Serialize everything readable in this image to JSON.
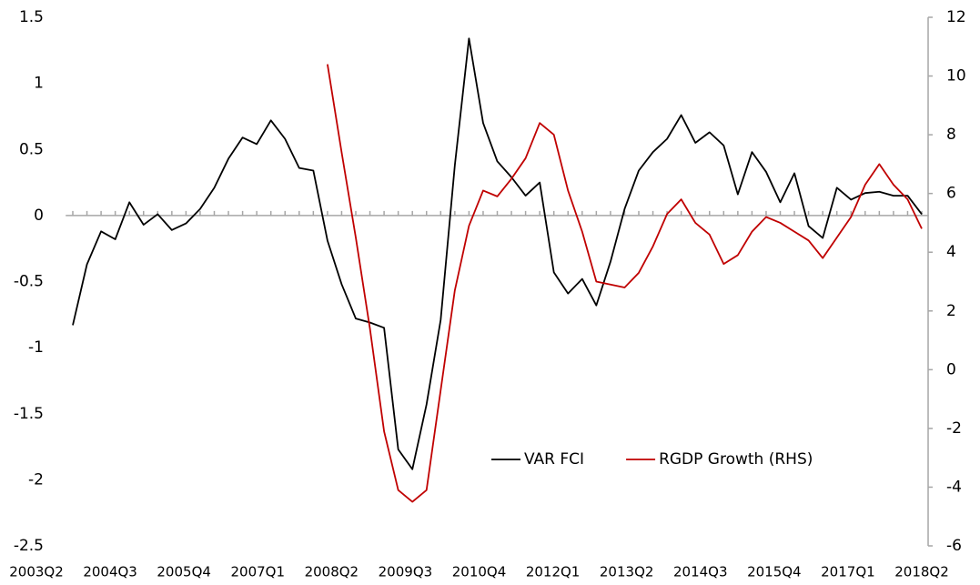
{
  "chart_data": {
    "type": "line",
    "categories": [
      "2003Q2",
      null,
      null,
      null,
      null,
      "2004Q3",
      null,
      null,
      null,
      null,
      "2005Q4",
      null,
      null,
      null,
      null,
      "2007Q1",
      null,
      null,
      null,
      null,
      "2008Q2",
      null,
      null,
      null,
      null,
      "2009Q3",
      null,
      null,
      null,
      null,
      "2010Q4",
      null,
      null,
      null,
      null,
      "2012Q1",
      null,
      null,
      null,
      null,
      "2013Q2",
      null,
      null,
      null,
      null,
      "2014Q3",
      null,
      null,
      null,
      null,
      "2015Q4",
      null,
      null,
      null,
      null,
      "2017Q1",
      null,
      null,
      null,
      null,
      "2018Q2"
    ],
    "series": [
      {
        "name": "VAR FCI",
        "color": "#000000",
        "values": [
          -0.83,
          -0.37,
          -0.12,
          -0.18,
          0.1,
          -0.07,
          0.01,
          -0.11,
          -0.06,
          0.05,
          0.21,
          0.43,
          0.59,
          0.54,
          0.72,
          0.58,
          0.36,
          0.34,
          -0.19,
          -0.52,
          -0.78,
          -0.81,
          -0.85,
          -1.77,
          -1.92,
          -1.43,
          -0.79,
          0.38,
          1.34,
          0.7,
          0.41,
          0.29,
          0.15,
          0.25,
          -0.43,
          -0.59,
          -0.48,
          -0.68,
          -0.35,
          0.05,
          0.34,
          0.48,
          0.58,
          0.76,
          0.55,
          0.63,
          0.53,
          0.16,
          0.48,
          0.33,
          0.1,
          0.32,
          -0.08,
          -0.17,
          0.21,
          0.12,
          0.17,
          0.18,
          0.15,
          0.15,
          0.01
        ]
      },
      {
        "name": "RGDP Growth (RHS)",
        "color": "#c00000",
        "axis": "y2",
        "values": [
          null,
          null,
          null,
          null,
          null,
          null,
          null,
          null,
          null,
          null,
          null,
          null,
          null,
          null,
          null,
          null,
          null,
          null,
          10.4,
          7.4,
          4.5,
          1.4,
          -2.1,
          -4.1,
          -4.5,
          -4.1,
          -0.7,
          2.7,
          4.9,
          6.1,
          5.9,
          6.5,
          7.2,
          8.4,
          8.0,
          6.1,
          4.7,
          3.0,
          2.9,
          2.8,
          3.3,
          4.2,
          5.3,
          5.8,
          5.0,
          4.6,
          3.6,
          3.9,
          4.7,
          5.2,
          5.0,
          4.7,
          4.4,
          3.8,
          4.5,
          5.2,
          6.3,
          7.0,
          6.3,
          5.8,
          4.8
        ]
      }
    ],
    "ylim": [
      -2.5,
      1.5
    ],
    "yticks": [
      1.5,
      1,
      0.5,
      0,
      -0.5,
      -1,
      -1.5,
      -2,
      -2.5
    ],
    "y2lim": [
      -6,
      12
    ],
    "y2ticks": [
      12,
      10,
      8,
      6,
      4,
      2,
      0,
      -2,
      -4,
      -6
    ],
    "legend": "lower right"
  }
}
